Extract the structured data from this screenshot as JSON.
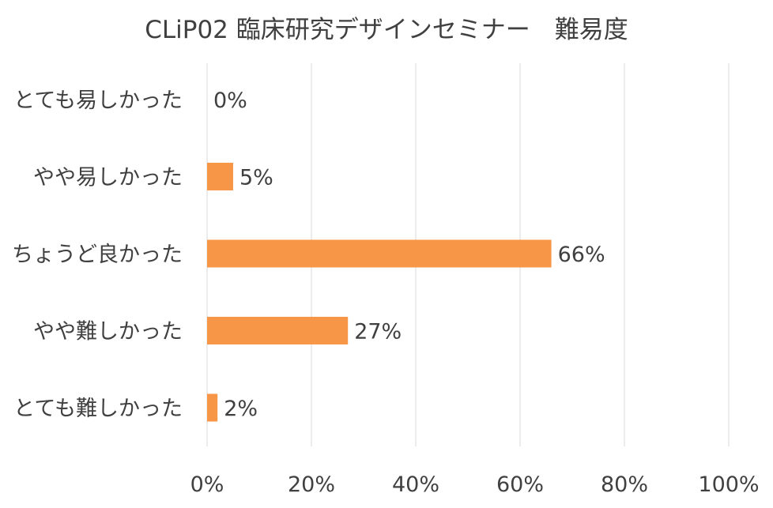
{
  "chart_data": {
    "type": "bar",
    "orientation": "horizontal",
    "title": "CLiP02 臨床研究デザインセミナー　難易度",
    "categories": [
      "とても易しかった",
      "やや易しかった",
      "ちょうど良かった",
      "やや難しかった",
      "とても難しかった"
    ],
    "values": [
      0,
      5,
      66,
      27,
      2
    ],
    "data_labels": [
      "0%",
      "5%",
      "66%",
      "27%",
      "2%"
    ],
    "xlim": [
      0,
      100
    ],
    "x_ticks": [
      0,
      20,
      40,
      60,
      80,
      100
    ],
    "x_tick_labels": [
      "0%",
      "20%",
      "40%",
      "60%",
      "80%",
      "100%"
    ],
    "xlabel": "",
    "ylabel": "",
    "grid": true,
    "legend": "none",
    "colors": {
      "bar": "#F79646",
      "grid": "#D9D9D9",
      "text": "#404040"
    }
  }
}
